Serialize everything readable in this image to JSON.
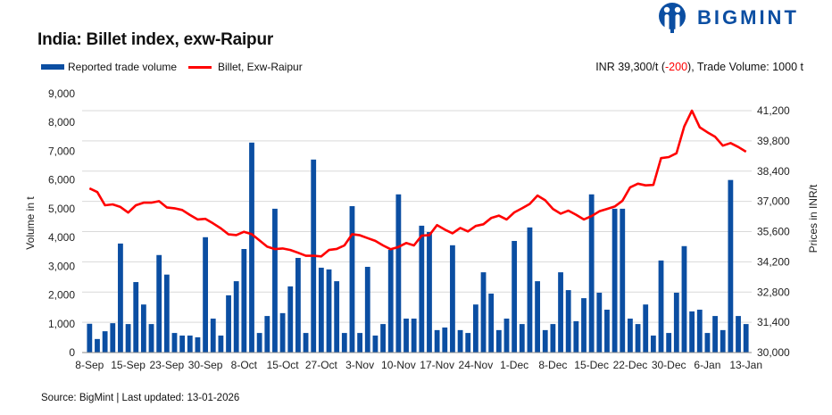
{
  "header": {
    "title": "India: Billet index, exw-Raipur",
    "logo_text": "BIGMINT",
    "info_prefix": "INR 39,300/t (",
    "info_change": "-200",
    "info_suffix": "), Trade Volume: 1000 t"
  },
  "footer": {
    "source": "Source: BigMint | Last updated: 13-01-2026"
  },
  "colors": {
    "bars": "#0b4ea2",
    "line": "#ff0000",
    "grid": "#d9d9d9"
  },
  "chart_data": {
    "type": "bar+line",
    "title": "India: Billet index, exw-Raipur",
    "legend": [
      "Reported trade volume",
      "Billet, Exw-Raipur"
    ],
    "legend_position": "top-left",
    "ylabel_left": "Volume in t",
    "ylabel_right": "Prices in INR/t",
    "ylim_left": [
      0,
      9000
    ],
    "yticks_left": [
      "0",
      "1,000",
      "2,000",
      "3,000",
      "4,000",
      "5,000",
      "6,000",
      "7,000",
      "8,000",
      "9,000"
    ],
    "ylim_right": [
      30000,
      41200
    ],
    "yticks_right": [
      "30,000",
      "31,400",
      "32,800",
      "34,200",
      "35,600",
      "37,000",
      "38,400",
      "39,800",
      "41,200"
    ],
    "grid": true,
    "xticks": [
      "8-Sep",
      "15-Sep",
      "23-Sep",
      "30-Sep",
      "8-Oct",
      "15-Oct",
      "27-Oct",
      "3-Nov",
      "10-Nov",
      "17-Nov",
      "24-Nov",
      "1-Dec",
      "8-Dec",
      "15-Dec",
      "22-Dec",
      "30-Dec",
      "6-Jan",
      "13-Jan"
    ],
    "series": [
      {
        "name": "Reported trade volume",
        "type": "bar",
        "axis": "left",
        "values": [
          1000,
          470,
          740,
          1020,
          3790,
          990,
          2450,
          1670,
          990,
          3390,
          2710,
          680,
          590,
          590,
          530,
          4010,
          1180,
          590,
          1990,
          2480,
          3600,
          7300,
          680,
          1270,
          5000,
          1370,
          2300,
          3290,
          680,
          6710,
          2950,
          2890,
          2480,
          680,
          5090,
          680,
          2980,
          590,
          990,
          3570,
          5500,
          1180,
          1180,
          4410,
          4190,
          780,
          870,
          3730,
          780,
          680,
          1670,
          2790,
          2050,
          780,
          1180,
          3880,
          990,
          4350,
          2480,
          780,
          990,
          2790,
          2170,
          1090,
          1890,
          5500,
          2080,
          1490,
          5000,
          5000,
          1180,
          990,
          1670,
          590,
          3200,
          680,
          2080,
          3700,
          1430,
          1490,
          680,
          1270,
          780,
          6000,
          1270,
          990
        ]
      },
      {
        "name": "Billet, Exw-Raipur",
        "type": "line",
        "axis": "right",
        "values": [
          37600,
          37430,
          36820,
          36860,
          36740,
          36480,
          36820,
          36940,
          36940,
          37010,
          36720,
          36680,
          36600,
          36370,
          36160,
          36190,
          35980,
          35750,
          35470,
          35440,
          35590,
          35480,
          35190,
          34900,
          34790,
          34820,
          34750,
          34620,
          34480,
          34480,
          34450,
          34750,
          34800,
          34960,
          35480,
          35430,
          35300,
          35170,
          34960,
          34780,
          34890,
          35070,
          34960,
          35410,
          35440,
          35900,
          35690,
          35520,
          35770,
          35610,
          35860,
          35940,
          36230,
          36340,
          36160,
          36490,
          36680,
          36880,
          37270,
          37050,
          36650,
          36430,
          36570,
          36380,
          36160,
          36320,
          36540,
          36650,
          36760,
          37030,
          37650,
          37820,
          37740,
          37760,
          39000,
          39050,
          39230,
          40470,
          41200,
          40430,
          40200,
          39990,
          39580,
          39700,
          39520,
          39300
        ]
      }
    ]
  }
}
